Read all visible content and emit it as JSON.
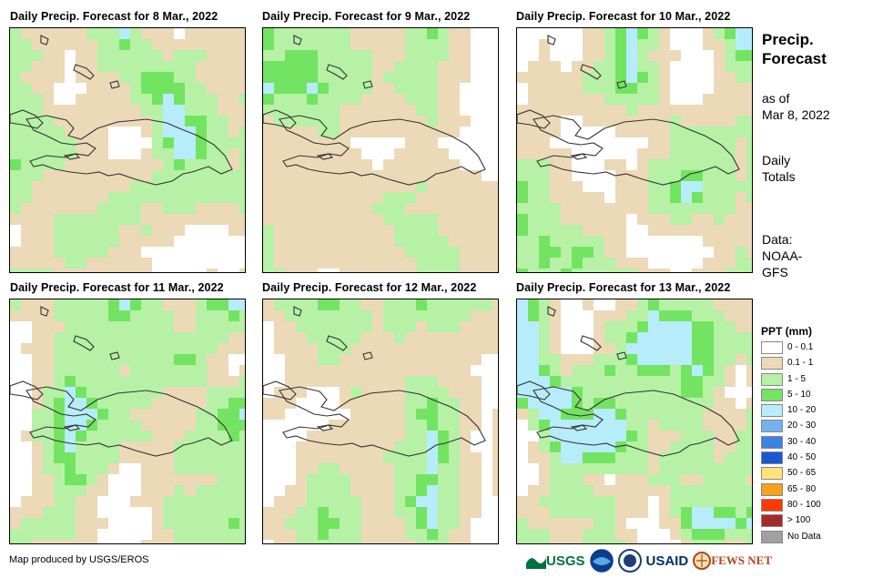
{
  "panels": [
    {
      "title": "Daily Precip. Forecast for 8 Mar., 2022"
    },
    {
      "title": "Daily Precip. Forecast for 9 Mar., 2022"
    },
    {
      "title": "Daily Precip. Forecast for 10 Mar., 2022"
    },
    {
      "title": "Daily Precip. Forecast for 11 Mar., 2022"
    },
    {
      "title": "Daily Precip. Forecast for 12 Mar., 2022"
    },
    {
      "title": "Daily Precip. Forecast for 13 Mar., 2022"
    }
  ],
  "sidebar": {
    "title_line1": "Precip.",
    "title_line2": "Forecast",
    "asof_line1": "as of",
    "asof_line2": "Mar 8, 2022",
    "daily_line1": "Daily",
    "daily_line2": "Totals",
    "data_line1": "Data:",
    "data_line2": "NOAA-",
    "data_line3": "GFS"
  },
  "legend": {
    "title": "PPT (mm)",
    "items": [
      {
        "label": "0 - 0.1",
        "color": "#ffffff"
      },
      {
        "label": "0.1 - 1",
        "color": "#ecd9b8"
      },
      {
        "label": "1 - 5",
        "color": "#b6f1a6"
      },
      {
        "label": "5 - 10",
        "color": "#73e461"
      },
      {
        "label": "10 - 20",
        "color": "#b7ecfa"
      },
      {
        "label": "20 - 30",
        "color": "#73b2f1"
      },
      {
        "label": "30 - 40",
        "color": "#3a82e6"
      },
      {
        "label": "40 - 50",
        "color": "#1857d6"
      },
      {
        "label": "50 - 65",
        "color": "#ffe27a"
      },
      {
        "label": "65 - 80",
        "color": "#f7a21a"
      },
      {
        "label": "80 - 100",
        "color": "#ff3a00"
      },
      {
        "label": "> 100",
        "color": "#a52a2a"
      },
      {
        "label": "No Data",
        "color": "#a0a0a0"
      }
    ]
  },
  "footer": {
    "credit": "Map produced by USGS/EROS",
    "logos": {
      "usgs": "USGS",
      "usaid": "USAID",
      "fewsnet": "FEWS NET"
    }
  }
}
